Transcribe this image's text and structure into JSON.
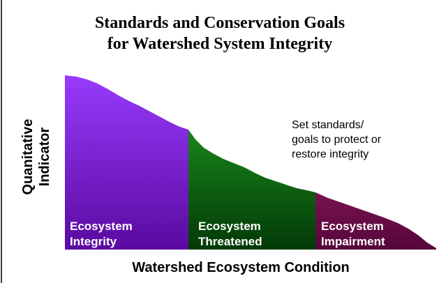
{
  "title": [
    "Standards and Conservation Goals",
    "for Watershed System Integrity"
  ],
  "y_axis_label": [
    "Quanitative",
    "Indicator"
  ],
  "x_axis_label": "Watershed Ecosystem Condition",
  "annotation": [
    "Set standards/",
    "goals to protect or",
    "restore integrity"
  ],
  "zones": [
    {
      "label": [
        "Ecosystem",
        "Integrity"
      ]
    },
    {
      "label": [
        "Ecosystem",
        "Threatened"
      ]
    },
    {
      "label": [
        "Ecosystem",
        "Impairment"
      ]
    }
  ]
}
